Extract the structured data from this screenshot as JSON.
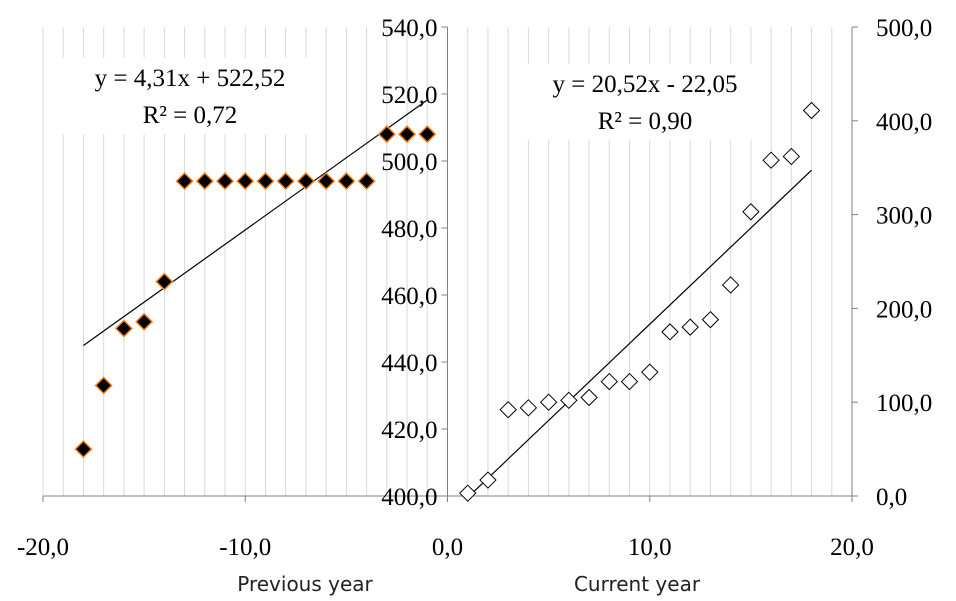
{
  "chart_data": {
    "type": "scatter",
    "title": "",
    "grid": true,
    "x_axis": {
      "range": [
        -20,
        20
      ],
      "ticks": [
        -20,
        -10,
        0,
        10,
        20
      ],
      "tick_labels": [
        "-20,0",
        "-10,0",
        "0,0",
        "10,0",
        "20,0"
      ]
    },
    "y_axis_left": {
      "range": [
        400,
        540
      ],
      "ticks": [
        400,
        420,
        440,
        460,
        480,
        500,
        520,
        540
      ],
      "tick_labels": [
        "400,0",
        "420,0",
        "440,0",
        "460,0",
        "480,0",
        "500,0",
        "520,0",
        "540,0"
      ]
    },
    "y_axis_right": {
      "range": [
        0,
        500
      ],
      "ticks": [
        0,
        100,
        200,
        300,
        400,
        500
      ],
      "tick_labels": [
        "0,0",
        "100,0",
        "200,0",
        "300,0",
        "400,0",
        "500,0"
      ]
    },
    "x_labels": [
      "Previous year",
      "Current year"
    ],
    "series": [
      {
        "axis": "left",
        "marker": "filled-diamond",
        "color": "#000000",
        "edge_color": "#f08020",
        "x": [
          -18,
          -17,
          -16,
          -15,
          -14,
          -13,
          -12,
          -11,
          -10,
          -9,
          -8,
          -7,
          -6,
          -5,
          -4,
          -3,
          -2,
          -1
        ],
        "y": [
          414,
          433,
          450,
          452,
          464,
          494,
          494,
          494,
          494,
          494,
          494,
          494,
          494,
          494,
          494,
          508,
          508,
          508
        ],
        "trendline": {
          "slope": 4.31,
          "intercept": 522.52,
          "x_range": [
            -18,
            -1
          ]
        },
        "equation": "y = 4,31x + 522,52",
        "r2": "R² = 0,72"
      },
      {
        "axis": "right",
        "marker": "open-diamond",
        "color": "#000000",
        "x": [
          1,
          2,
          3,
          4,
          5,
          6,
          7,
          8,
          9,
          10,
          11,
          12,
          13,
          14,
          15,
          16,
          17,
          18
        ],
        "y": [
          3,
          17,
          92,
          94,
          100,
          102,
          105,
          122,
          122,
          132,
          175,
          180,
          188,
          225,
          303,
          358,
          362,
          411
        ],
        "trendline": {
          "slope": 20.52,
          "intercept": -22.05,
          "x_range": [
            1,
            18
          ]
        },
        "equation": "y = 20,52x - 22,05",
        "r2": "R² = 0,90"
      }
    ]
  }
}
